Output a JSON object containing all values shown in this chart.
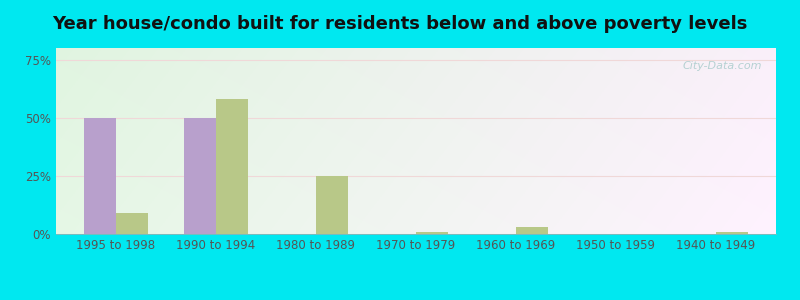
{
  "title": "Year house/condo built for residents below and above poverty levels",
  "categories": [
    "1995 to 1998",
    "1990 to 1994",
    "1980 to 1989",
    "1970 to 1979",
    "1960 to 1969",
    "1950 to 1959",
    "1940 to 1949"
  ],
  "below_poverty": [
    50,
    50,
    0,
    0,
    0,
    0,
    0
  ],
  "above_poverty": [
    9,
    58,
    25,
    1,
    3,
    0,
    1
  ],
  "below_color": "#b8a0cc",
  "above_color": "#b8c888",
  "yticks": [
    0,
    25,
    50,
    75
  ],
  "ylim": [
    0,
    80
  ],
  "background_color": "#00e8f0",
  "bar_width": 0.32,
  "title_fontsize": 13,
  "tick_fontsize": 8.5,
  "legend_fontsize": 9,
  "watermark": "City-Data.com"
}
